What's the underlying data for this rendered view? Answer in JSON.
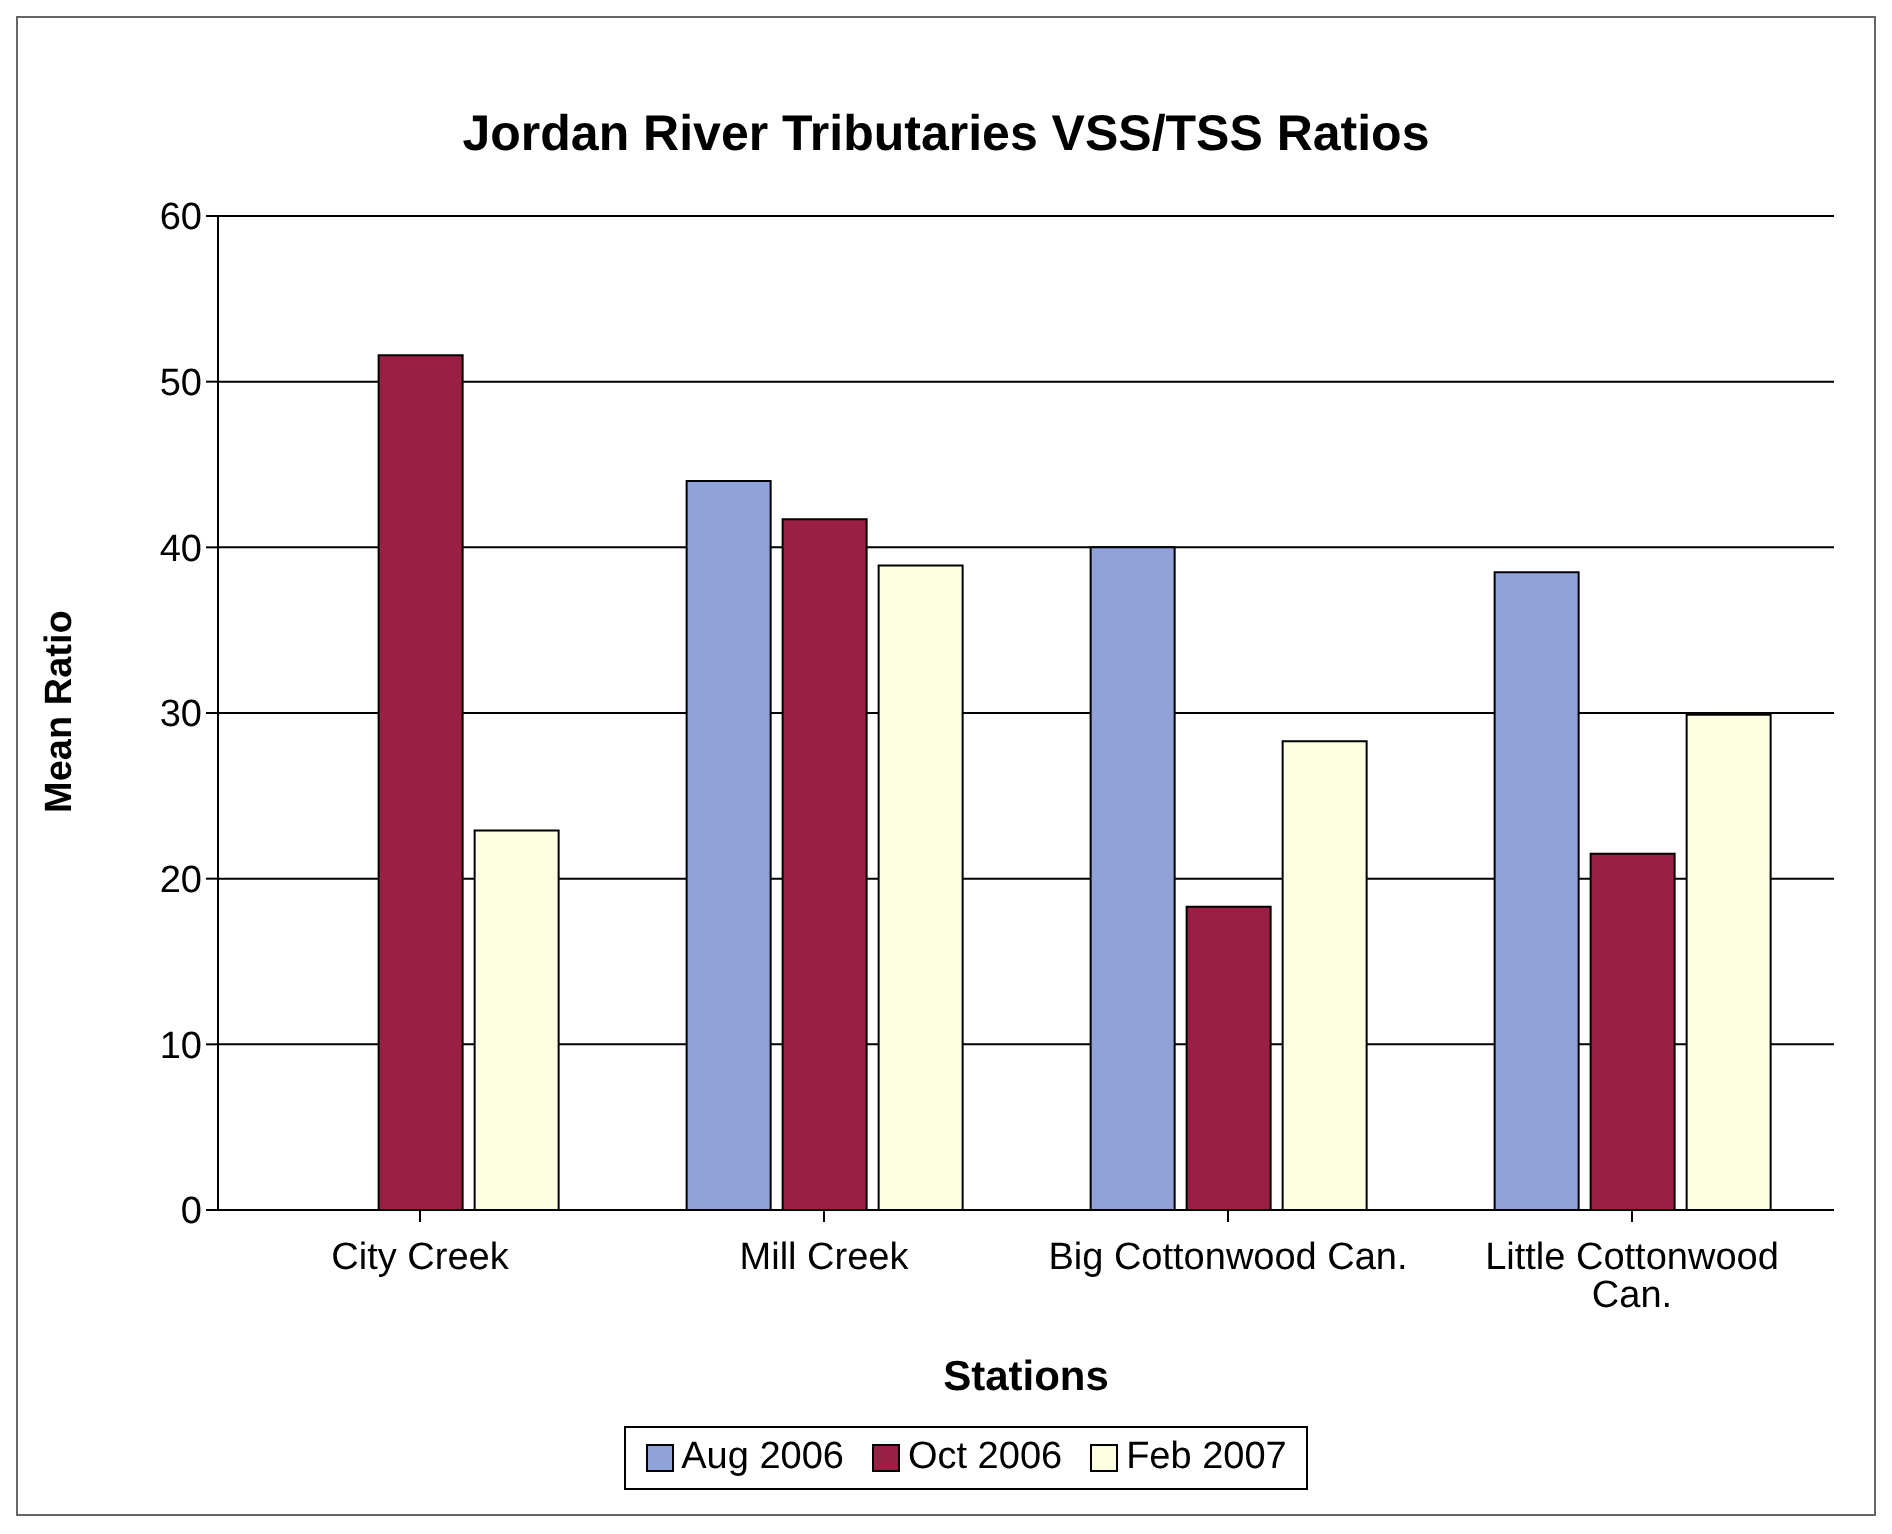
{
  "chart_data": {
    "type": "bar",
    "title": "Jordan River Tributaries VSS/TSS Ratios",
    "xlabel": "Stations",
    "ylabel": "Mean Ratio",
    "categories": [
      "City Creek",
      "Mill Creek",
      "Big Cottonwood Can.",
      "Little Cottonwood Can."
    ],
    "series": [
      {
        "name": "Aug 2006",
        "color": "#8fa3d8",
        "values": [
          null,
          44.0,
          40.0,
          38.5
        ]
      },
      {
        "name": "Oct 2006",
        "color": "#9b1f45",
        "values": [
          51.6,
          41.7,
          18.3,
          21.5
        ]
      },
      {
        "name": "Feb 2007",
        "color": "#fdfde0",
        "values": [
          22.9,
          38.9,
          28.3,
          29.9
        ]
      }
    ],
    "ylim": [
      0,
      60
    ],
    "yticks": [
      0,
      10,
      20,
      30,
      40,
      50,
      60
    ],
    "grid": "y",
    "legend": "bottom"
  }
}
